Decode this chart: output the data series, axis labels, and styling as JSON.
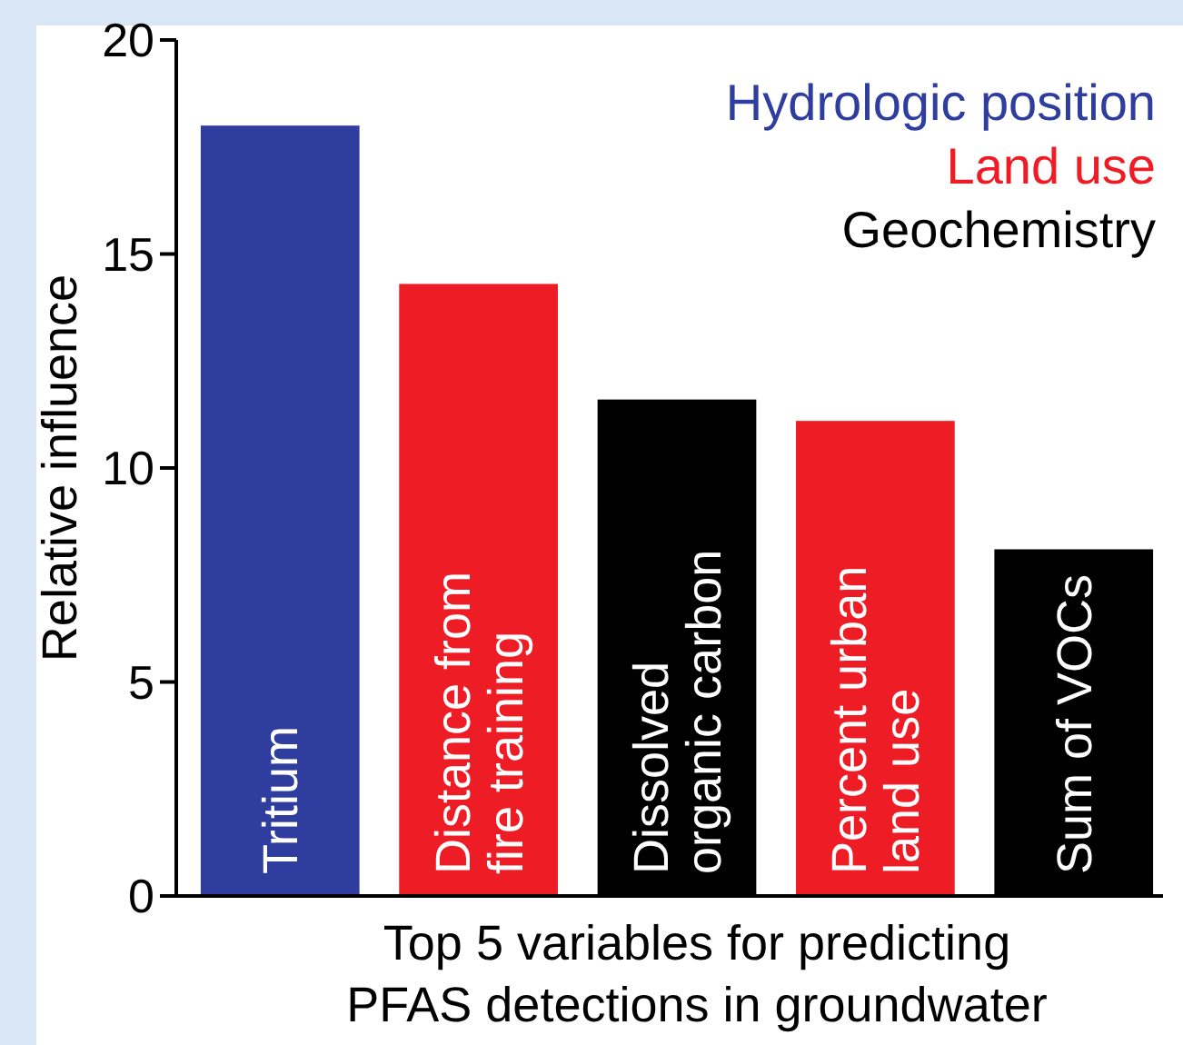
{
  "chart_data": {
    "type": "bar",
    "stacked": true,
    "xlabel": "Top 5 variables for predicting PFAS detections in groundwater",
    "ylabel": "Relative influence",
    "categories": [
      "Tritium",
      "Distance from fire training",
      "Dissolved organic carbon",
      "Percent urban land use",
      "Sum of VOCs"
    ],
    "series": [
      {
        "name": "Hydrologic position",
        "color": "#2e3d9e",
        "values": [
          18.0,
          null,
          null,
          null,
          null
        ]
      },
      {
        "name": "Land use",
        "color": "#ee1c25",
        "values": [
          null,
          14.3,
          null,
          11.1,
          null
        ]
      },
      {
        "name": "Geochemistry",
        "color": "#000000",
        "values": [
          null,
          null,
          11.6,
          null,
          8.1
        ]
      }
    ],
    "ylim": [
      0,
      20
    ],
    "yticks": [
      0,
      5,
      10,
      15,
      20
    ],
    "grid": false,
    "legend": "top right"
  }
}
